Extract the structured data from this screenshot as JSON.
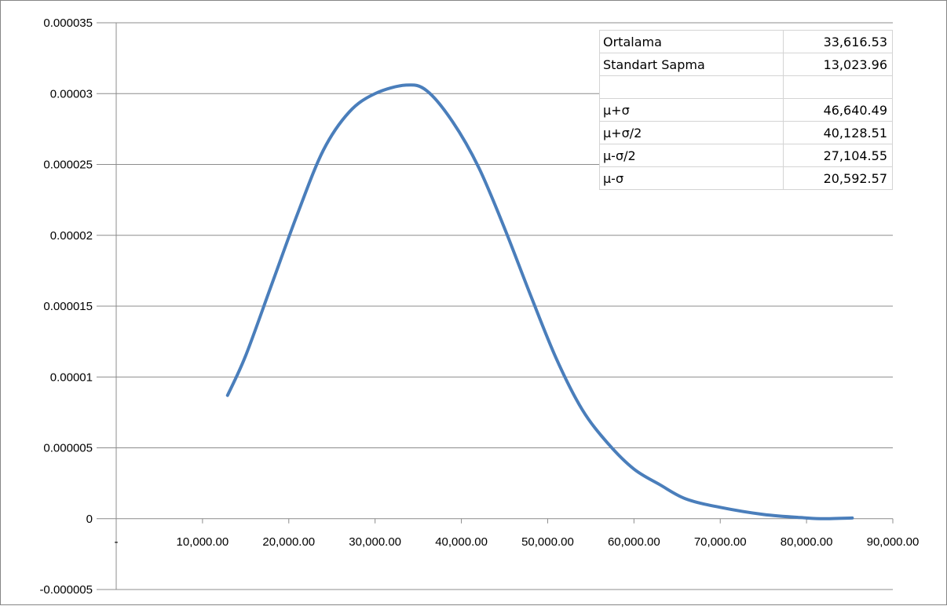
{
  "chart_data": {
    "type": "line",
    "title": "",
    "xlabel": "",
    "ylabel": "",
    "xlim": [
      0,
      90000
    ],
    "ylim": [
      -5e-06,
      3.5e-05
    ],
    "grid": true,
    "legend": "none",
    "x_ticks": [
      "-",
      "10,000.00",
      "20,000.00",
      "30,000.00",
      "40,000.00",
      "50,000.00",
      "60,000.00",
      "70,000.00",
      "80,000.00",
      "90,000.00"
    ],
    "y_ticks": [
      "-0.000005",
      "0",
      "0.000005",
      "0.00001",
      "0.000015",
      "0.00002",
      "0.000025",
      "0.00003",
      "0.000035"
    ],
    "series": [
      {
        "color": "#4a7ebb",
        "points": [
          [
            12900,
            8.7e-06
          ],
          [
            15000,
            1.15e-05
          ],
          [
            18000,
            1.65e-05
          ],
          [
            21000,
            2.15e-05
          ],
          [
            24000,
            2.6e-05
          ],
          [
            27000,
            2.87e-05
          ],
          [
            30000,
            3e-05
          ],
          [
            33600,
            3.06e-05
          ],
          [
            36000,
            3.02e-05
          ],
          [
            39000,
            2.8e-05
          ],
          [
            42000,
            2.48e-05
          ],
          [
            45000,
            2.05e-05
          ],
          [
            48000,
            1.58e-05
          ],
          [
            51000,
            1.13e-05
          ],
          [
            54000,
            7.7e-06
          ],
          [
            57000,
            5.3e-06
          ],
          [
            60000,
            3.5e-06
          ],
          [
            63000,
            2.4e-06
          ],
          [
            66000,
            1.4e-06
          ],
          [
            70000,
            8e-07
          ],
          [
            75000,
            3e-07
          ],
          [
            80000,
            5e-08
          ],
          [
            82000,
            0.0
          ],
          [
            85300,
            5e-08
          ]
        ]
      }
    ]
  },
  "stats_table": [
    {
      "label": "Ortalama",
      "value": "33,616.53"
    },
    {
      "label": "Standart Sapma",
      "value": "13,023.96"
    },
    {
      "label": "",
      "value": ""
    },
    {
      "label": "μ+σ",
      "value": "46,640.49"
    },
    {
      "label": "μ+σ/2",
      "value": "40,128.51"
    },
    {
      "label": "μ-σ/2",
      "value": "27,104.55"
    },
    {
      "label": "μ-σ",
      "value": "20,592.57"
    }
  ]
}
